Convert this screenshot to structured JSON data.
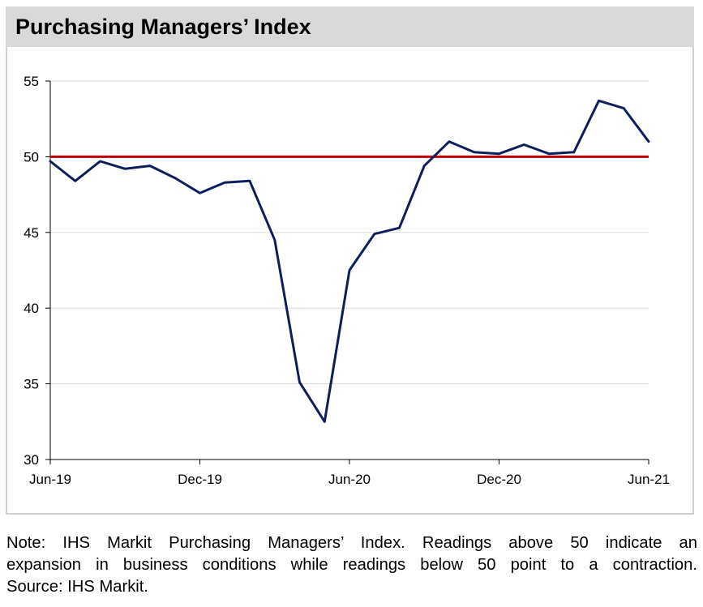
{
  "title": "Purchasing Managers’ Index",
  "note_lines": [
    "Note: IHS Markit Purchasing Managers’ Index. Readings above 50 indicate an",
    "expansion in business conditions while readings below 50 point to a contraction.",
    "Source: IHS Markit."
  ],
  "colors": {
    "series": "#0c1f5c",
    "reference": "#c00000",
    "grid": "#d9d9d9",
    "title_bg": "#d9d9d9"
  },
  "chart_data": {
    "type": "line",
    "title": "Purchasing Managers’ Index",
    "xlabel": "",
    "ylabel": "",
    "ylim": [
      30,
      55
    ],
    "yticks": [
      30,
      35,
      40,
      45,
      50,
      55
    ],
    "x": [
      "Jun-19",
      "Jul-19",
      "Aug-19",
      "Sep-19",
      "Oct-19",
      "Nov-19",
      "Dec-19",
      "Jan-20",
      "Feb-20",
      "Mar-20",
      "Apr-20",
      "May-20",
      "Jun-20",
      "Jul-20",
      "Aug-20",
      "Sep-20",
      "Oct-20",
      "Nov-20",
      "Dec-20",
      "Jan-21",
      "Feb-21",
      "Mar-21",
      "Apr-21",
      "May-21",
      "Jun-21"
    ],
    "xtick_labels": [
      "Jun-19",
      "Dec-19",
      "Jun-20",
      "Dec-20",
      "Jun-21"
    ],
    "xtick_indices": [
      0,
      6,
      12,
      18,
      24
    ],
    "series": [
      {
        "values": [
          49.7,
          48.4,
          49.7,
          49.2,
          49.4,
          48.6,
          47.6,
          48.3,
          48.4,
          44.5,
          35.1,
          32.5,
          42.5,
          44.9,
          45.3,
          49.4,
          51.0,
          50.3,
          50.2,
          50.8,
          50.2,
          50.3,
          53.7,
          53.2,
          51.0
        ]
      }
    ],
    "reference_line": {
      "y": 50
    },
    "grid": true,
    "legend": "none"
  }
}
